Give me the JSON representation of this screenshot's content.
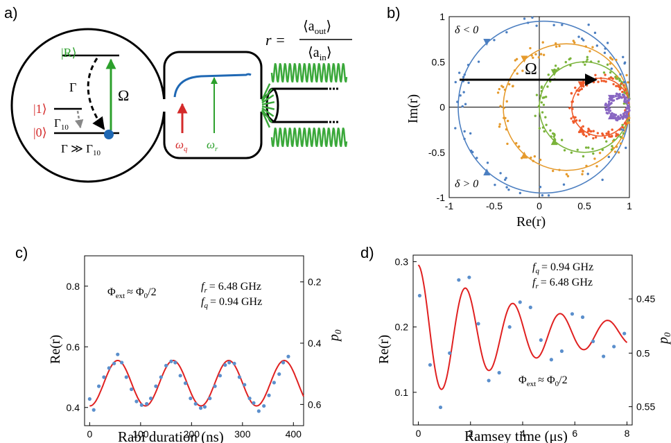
{
  "panel_labels": {
    "a": "a)",
    "b": "b)",
    "c": "c)",
    "d": "d)"
  },
  "schematic": {
    "level_R": "|R⟩",
    "level_1": "|1⟩",
    "level_0": "|0⟩",
    "gamma": "Γ",
    "gamma10": "Γ",
    "gamma10_sub": "10",
    "cond": "Γ ≫ Γ",
    "cond_sub": "10",
    "omega": "Ω",
    "omega_q": "ω",
    "omega_q_sub": "q",
    "omega_r": "ω",
    "omega_r_sub": "r",
    "r_def_lhs": "r =",
    "r_num": "⟨a",
    "r_num_sub": "out",
    "r_den": "⟨a",
    "r_den_sub": "in",
    "colors": {
      "qubit": "#d42a2a",
      "resonator": "#3aa83a",
      "curve": "#1f68b4",
      "dot": "#1f68b4"
    }
  },
  "chart_data": [
    {
      "type": "scatter",
      "panel": "b",
      "xlabel": "Re(r)",
      "ylabel": "Im(r)",
      "xlim": [
        -1,
        1
      ],
      "ylim": [
        -1,
        1
      ],
      "xticks": [
        "-1",
        "-0.5",
        "0",
        "0.5",
        "1"
      ],
      "yticks": [
        "1",
        "0.5",
        "0",
        "-0.5",
        "-1"
      ],
      "annotations": {
        "top": "δ < 0",
        "bottom": "δ > 0",
        "arrow": "Ω"
      },
      "series": [
        {
          "color": "#4c7fc1",
          "circle_center": [
            0.05,
            0
          ],
          "circle_radius": 0.95
        },
        {
          "color": "#e59a2c",
          "circle_center": [
            0.3,
            0
          ],
          "circle_radius": 0.7
        },
        {
          "color": "#7ab33a",
          "circle_center": [
            0.5,
            0
          ],
          "circle_radius": 0.5
        },
        {
          "color": "#ef5a2a",
          "circle_center": [
            0.68,
            0
          ],
          "circle_radius": 0.32
        },
        {
          "color": "#8866c2",
          "circle_center": [
            0.88,
            0
          ],
          "circle_radius": 0.12
        }
      ]
    },
    {
      "type": "line",
      "panel": "c",
      "xlabel": "Rabi duration (ns)",
      "ylabel": "Re(r)",
      "y2label": "p",
      "y2label_sub": "0",
      "xlim": [
        -10,
        420
      ],
      "ylim": [
        0.34,
        0.9
      ],
      "xticks": [
        0,
        100,
        200,
        300,
        400
      ],
      "yticks": [
        0.4,
        0.6,
        0.8
      ],
      "y2ticks": [
        {
          "label": "0.2",
          "y": 0.814
        },
        {
          "label": "0.4",
          "y": 0.612
        },
        {
          "label": "0.6",
          "y": 0.41
        }
      ],
      "annotations": [
        "f",
        "r",
        "= 6.48 GHz",
        "f",
        "q",
        "= 0.94 GHz",
        "Φ",
        "ext",
        "≈ Φ",
        "0",
        "/2"
      ],
      "fit": {
        "offset": 0.48,
        "amplitude": 0.075,
        "period": 109,
        "phase_x": 55
      },
      "points": {
        "x": [
          0,
          8,
          18,
          28,
          38,
          48,
          55,
          63,
          72,
          82,
          92,
          102,
          112,
          120,
          130,
          140,
          150,
          160,
          168,
          178,
          188,
          198,
          208,
          218,
          226,
          236,
          246,
          256,
          266,
          274,
          284,
          294,
          304,
          314,
          322,
          332,
          342,
          352,
          362,
          372,
          380,
          390
        ],
        "y": [
          0.428,
          0.392,
          0.47,
          0.5,
          0.53,
          0.545,
          0.575,
          0.548,
          0.5,
          0.46,
          0.42,
          0.408,
          0.412,
          0.43,
          0.47,
          0.5,
          0.538,
          0.552,
          0.548,
          0.505,
          0.48,
          0.43,
          0.412,
          0.398,
          0.402,
          0.43,
          0.47,
          0.505,
          0.54,
          0.548,
          0.545,
          0.5,
          0.475,
          0.43,
          0.415,
          0.388,
          0.405,
          0.44,
          0.482,
          0.51,
          0.548,
          0.568
        ]
      }
    },
    {
      "type": "line",
      "panel": "d",
      "xlabel": "Ramsey time (μs)",
      "ylabel": "Re(r)",
      "y2label": "p",
      "y2label_sub": "0",
      "xlim": [
        -0.2,
        8.2
      ],
      "ylim": [
        0.05,
        0.31
      ],
      "xticks": [
        0,
        2,
        4,
        6,
        8
      ],
      "yticks": [
        0.1,
        0.2,
        0.3
      ],
      "y2ticks": [
        {
          "label": "0.45",
          "y": 0.243
        },
        {
          "label": "0.5",
          "y": 0.16
        },
        {
          "label": "0.55",
          "y": 0.078
        }
      ],
      "annotations": [
        "f",
        "q",
        "= 0.94 GHz",
        "f",
        "r",
        "= 6.48 GHz",
        "Φ",
        "ext",
        "≈ Φ",
        "0",
        "/2"
      ],
      "fit": {
        "offset": 0.19,
        "amplitude": 0.105,
        "period": 2.0,
        "decay": 4.4
      },
      "points": {
        "x": [
          0.05,
          0.45,
          0.85,
          1.2,
          1.55,
          1.95,
          2.3,
          2.7,
          3.1,
          3.5,
          3.9,
          4.3,
          4.7,
          5.1,
          5.5,
          5.9,
          6.3,
          6.7,
          7.1,
          7.5,
          7.9
        ],
        "y": [
          0.248,
          0.142,
          0.077,
          0.16,
          0.272,
          0.276,
          0.205,
          0.118,
          0.13,
          0.2,
          0.238,
          0.23,
          0.18,
          0.15,
          0.163,
          0.22,
          0.215,
          0.178,
          0.155,
          0.17,
          0.19
        ]
      }
    }
  ]
}
